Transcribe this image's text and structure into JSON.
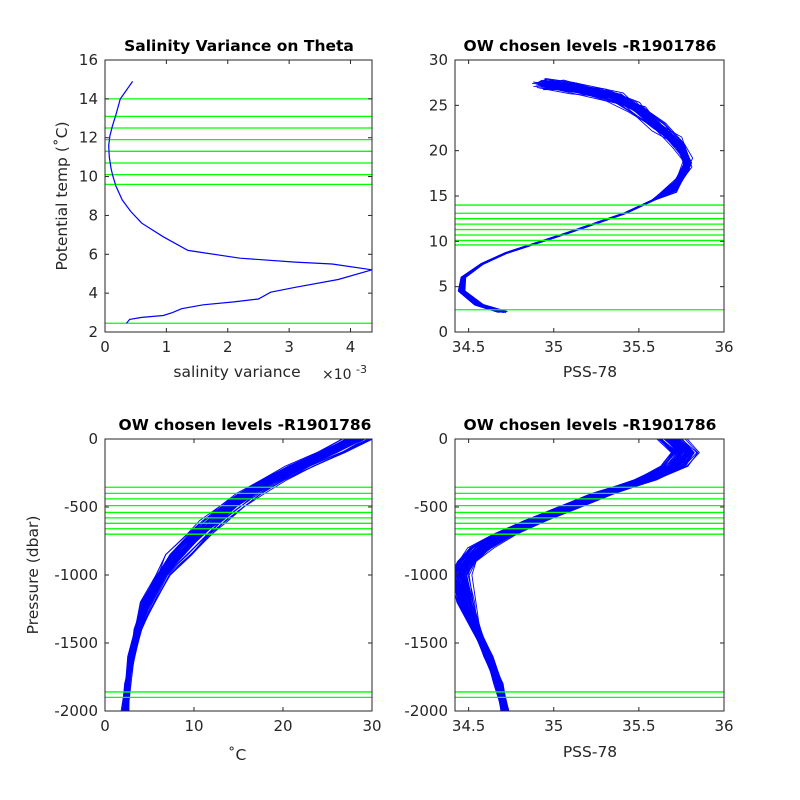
{
  "chart_data": [
    {
      "type": "line",
      "title": "Salinity Variance on Theta",
      "xlabel": "salinity variance",
      "x_exponent_label": "×10",
      "x_exponent": "-3",
      "ylabel": "Potential temp (˚C)",
      "xlim": [
        0,
        0.00435
      ],
      "ylim": [
        2,
        16
      ],
      "xtick_values": [
        0,
        0.001,
        0.002,
        0.003,
        0.004
      ],
      "xticks": [
        "0",
        "1",
        "2",
        "3",
        "4"
      ],
      "yticks": [
        "2",
        "4",
        "6",
        "8",
        "10",
        "12",
        "14",
        "16"
      ],
      "series": [
        {
          "color": "#0000ff",
          "x": [
            0.00045,
            0.00025,
            0.00018,
            0.00012,
            8e-05,
            6e-05,
            7e-05,
            0.0001,
            0.00013,
            0.00018,
            0.00028,
            0.00042,
            0.0006,
            0.00095,
            0.00135,
            0.0022,
            0.0031,
            0.0037,
            0.00435,
            0.0038,
            0.0031,
            0.0027,
            0.0025,
            0.0021,
            0.0016,
            0.00125,
            0.0011,
            0.00095,
            0.0006,
            0.0004,
            0.00035
          ],
          "y": [
            14.9,
            14.0,
            13.2,
            12.6,
            12.1,
            11.6,
            11.0,
            10.4,
            10.0,
            9.5,
            8.8,
            8.2,
            7.6,
            6.9,
            6.2,
            5.8,
            5.6,
            5.5,
            5.2,
            4.7,
            4.3,
            4.05,
            3.7,
            3.55,
            3.4,
            3.2,
            3.0,
            2.85,
            2.75,
            2.65,
            2.45
          ]
        }
      ],
      "chosen_levels": [
        2.45,
        9.6,
        10.1,
        10.7,
        11.3,
        11.9,
        12.5,
        13.1,
        14.0
      ]
    },
    {
      "type": "line",
      "title": "OW chosen levels -R1901786",
      "xlabel": "PSS-78",
      "ylabel": "",
      "xlim": [
        34.42,
        36
      ],
      "ylim": [
        0,
        30
      ],
      "xtick_values": [
        34.5,
        35,
        35.5,
        36
      ],
      "xticks": [
        "34.5",
        "35",
        "35.5",
        "36"
      ],
      "ytick_values": [
        0,
        5,
        10,
        15,
        20,
        25,
        30
      ],
      "yticks": [
        "0",
        "5",
        "10",
        "15",
        "20",
        "25",
        "30"
      ],
      "profile_salinity": [
        34.7,
        34.56,
        34.46,
        34.47,
        34.58,
        34.72,
        34.9,
        35.08,
        35.25,
        35.42,
        35.58,
        35.72,
        35.79,
        35.74,
        35.62,
        35.5,
        35.35,
        35.1,
        34.95
      ],
      "profile_temperature": [
        2.2,
        3.0,
        4.5,
        6.0,
        7.5,
        8.7,
        9.8,
        10.9,
        12.0,
        13.1,
        14.5,
        16.0,
        18.6,
        20.5,
        22.5,
        24.5,
        26.0,
        27.0,
        27.3
      ],
      "chosen_levels": [
        2.45,
        9.6,
        10.1,
        10.7,
        11.3,
        11.9,
        12.5,
        13.1,
        14.0
      ]
    },
    {
      "type": "line",
      "title": "OW chosen levels -R1901786",
      "xlabel": "˚C",
      "ylabel": "Pressure (dbar)",
      "xlim": [
        0,
        30
      ],
      "ylim": [
        -2000,
        0
      ],
      "xtick_values": [
        0,
        10,
        20,
        30
      ],
      "xticks": [
        "0",
        "10",
        "20",
        "30"
      ],
      "ytick_values": [
        -2000,
        -1500,
        -1000,
        -500,
        0
      ],
      "yticks": [
        "-2000",
        "-1500",
        "-1000",
        "-500",
        "0"
      ],
      "profile_pressure": [
        -2000,
        -1800,
        -1600,
        -1400,
        -1200,
        -1000,
        -850,
        -700,
        -600,
        -500,
        -400,
        -300,
        -200,
        -100,
        0
      ],
      "profile_temperature": [
        2.3,
        2.6,
        3.0,
        3.7,
        4.8,
        6.5,
        8.3,
        10.6,
        12.4,
        14.2,
        16.4,
        19.0,
        22.0,
        25.5,
        28.5
      ],
      "chosen_levels": [
        -1900,
        -1860,
        -700,
        -660,
        -620,
        -580,
        -540,
        -490,
        -440,
        -400,
        -355
      ]
    },
    {
      "type": "line",
      "title": "OW chosen levels -R1901786",
      "xlabel": "PSS-78",
      "ylabel": "",
      "xlim": [
        34.42,
        36
      ],
      "ylim": [
        -2000,
        0
      ],
      "xtick_values": [
        34.5,
        35,
        35.5,
        36
      ],
      "xticks": [
        "34.5",
        "35",
        "35.5",
        "36"
      ],
      "ytick_values": [
        -2000,
        -1500,
        -1000,
        -500,
        0
      ],
      "yticks": [
        "-2000",
        "-1500",
        "-1000",
        "-500",
        "0"
      ],
      "profile_pressure": [
        -2000,
        -1800,
        -1600,
        -1400,
        -1200,
        -1000,
        -900,
        -800,
        -700,
        -600,
        -500,
        -400,
        -300,
        -200,
        -100,
        0
      ],
      "profile_salinity": [
        34.72,
        34.68,
        34.62,
        34.55,
        34.49,
        34.46,
        34.5,
        34.58,
        34.72,
        34.9,
        35.1,
        35.3,
        35.55,
        35.72,
        35.78,
        35.7
      ],
      "chosen_levels": [
        -1900,
        -1860,
        -700,
        -660,
        -620,
        -580,
        -540,
        -490,
        -440,
        -400,
        -355
      ]
    }
  ]
}
